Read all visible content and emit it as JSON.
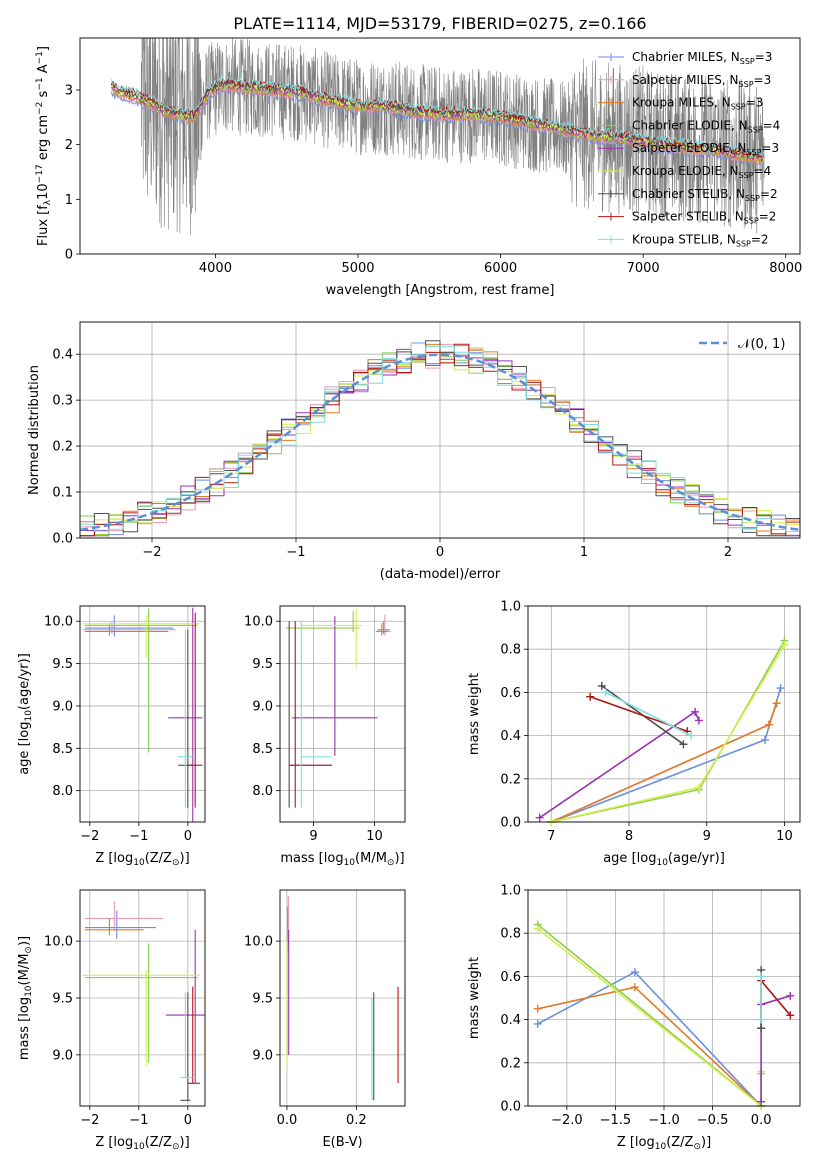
{
  "figure_title": "PLATE=1114, MJD=53179, FIBERID=0275, z=0.166",
  "colors": {
    "Chabrier MILES": "#6a8fe0",
    "Salpeter MILES": "#e89ab6",
    "Kroupa MILES": "#e07b2a",
    "Chabrier ELODIE": "#8ccf4a",
    "Salpeter ELODIE": "#9b32b4",
    "Kroupa ELODIE": "#d4ee52",
    "Chabrier STELIB": "#505050",
    "Salpeter STELIB": "#b01818",
    "Kroupa STELIB": "#7fdede",
    "data": "#808080",
    "normal": "#5b8fd6"
  },
  "chart_data": [
    {
      "id": "spectrum",
      "type": "line",
      "xlabel": "wavelength [Angstrom, rest frame]",
      "ylabel_main": "Flux [f",
      "ylabel_sub": "λ",
      "ylabel_rest": "10",
      "ylabel_sup1": "−17",
      "ylabel_mid": " erg cm",
      "ylabel_sup2": "−2",
      "ylabel_mid2": " s",
      "ylabel_sup3": "−1",
      "ylabel_end": " A",
      "ylabel_sup4": "−1",
      "ylabel_close": "]",
      "xlim": [
        3050,
        8100
      ],
      "ylim": [
        0,
        3.95
      ],
      "xticks": [
        4000,
        5000,
        6000,
        7000,
        8000
      ],
      "yticks": [
        0,
        1,
        2,
        3
      ],
      "model_continuum": {
        "x": [
          3270,
          3330,
          3420,
          3500,
          3560,
          3650,
          3750,
          3850,
          3950,
          4050,
          4200,
          4400,
          4600,
          4800,
          5000,
          5200,
          5400,
          5600,
          5800,
          6000,
          6200,
          6400,
          6550,
          6700,
          6900,
          7100,
          7300,
          7500,
          7700,
          7850
        ],
        "y": [
          3.05,
          2.95,
          2.9,
          2.8,
          2.75,
          2.6,
          2.55,
          2.5,
          2.95,
          3.1,
          3.05,
          3.0,
          2.95,
          2.8,
          2.7,
          2.7,
          2.6,
          2.55,
          2.55,
          2.5,
          2.4,
          2.3,
          2.2,
          2.15,
          2.1,
          2.0,
          1.95,
          1.9,
          1.8,
          1.75
        ]
      },
      "legend": [
        {
          "label": "Chabrier MILES",
          "n": "3"
        },
        {
          "label": "Salpeter MILES",
          "n": "3"
        },
        {
          "label": "Kroupa MILES",
          "n": "3"
        },
        {
          "label": "Chabrier ELODIE",
          "n": "4"
        },
        {
          "label": "Salpeter ELODIE",
          "n": "3"
        },
        {
          "label": "Kroupa ELODIE",
          "n": "4"
        },
        {
          "label": "Chabrier STELIB",
          "n": "2"
        },
        {
          "label": "Salpeter STELIB",
          "n": "2"
        },
        {
          "label": "Kroupa STELIB",
          "n": "2"
        }
      ],
      "legend_prefix": "N",
      "legend_sub": "SSP",
      "legend_location": "upper-right"
    },
    {
      "id": "residuals",
      "type": "histogram",
      "xlabel": "(data-model)/error",
      "ylabel": "Normed distribution",
      "xlim": [
        -2.5,
        2.5
      ],
      "ylim": [
        0,
        0.47
      ],
      "xticks": [
        -2,
        -1,
        0,
        1,
        2
      ],
      "xtick_labels": [
        "−2",
        "−1",
        "0",
        "1",
        "2"
      ],
      "yticks": [
        0.0,
        0.1,
        0.2,
        0.3,
        0.4
      ],
      "ytick_labels": [
        "0.0",
        "0.1",
        "0.2",
        "0.3",
        "0.4"
      ],
      "bin_width": 0.1,
      "bin_start": -2.5,
      "legend_label": "𝒩(0, 1)",
      "legend_location": "upper-right",
      "grid": true
    },
    {
      "id": "Z-age",
      "type": "errorbar",
      "xlabel_main": "Z [log",
      "xlabel_sub": "10",
      "xlabel_end": "(Z/Z",
      "xlabel_sun": "⊙",
      "xlabel_close": ")]",
      "ylabel": "age  [log",
      "ylabel_sub": "10",
      "ylabel_end": "(age/yr)]",
      "xlim": [
        -2.2,
        0.35
      ],
      "ylim": [
        7.63,
        10.18
      ],
      "xticks": [
        -2,
        -1,
        0
      ],
      "xtick_labels": [
        "−2",
        "−1",
        "0"
      ],
      "yticks": [
        8.0,
        8.5,
        9.0,
        9.5,
        10.0
      ],
      "ytick_labels": [
        "8.0",
        "8.5",
        "9.0",
        "9.5",
        "10.0"
      ],
      "points": [
        {
          "model": "Chabrier MILES",
          "x": -1.5,
          "xerr": [
            0.6,
            1.2
          ],
          "y": 9.92,
          "yerr": [
            0.1,
            0.15
          ]
        },
        {
          "model": "Salpeter MILES",
          "x": -1.55,
          "xerr": [
            0.6,
            1.3
          ],
          "y": 9.9,
          "yerr": [
            0.05,
            0.1
          ]
        },
        {
          "model": "Kroupa MILES",
          "x": -1.6,
          "xerr": [
            0.5,
            1.2
          ],
          "y": 9.88,
          "yerr": [
            0.05,
            0.1
          ]
        },
        {
          "model": "Chabrier ELODIE",
          "x": -0.8,
          "xerr": [
            1.3,
            1.0
          ],
          "y": 9.95,
          "yerr": [
            1.5,
            0.2
          ]
        },
        {
          "model": "Salpeter ELODIE",
          "x": 0.1,
          "xerr": [
            0.5,
            0.2
          ],
          "y": 8.86,
          "yerr": [
            2.0,
            1.3
          ]
        },
        {
          "model": "Kroupa ELODIE",
          "x": -0.85,
          "xerr": [
            1.3,
            1.1
          ],
          "y": 9.97,
          "yerr": [
            0.4,
            0.1
          ]
        },
        {
          "model": "Chabrier STELIB",
          "x": 0.0,
          "xerr": [
            0.2,
            0.1
          ],
          "y": 8.3,
          "yerr": [
            0.5,
            1.6
          ]
        },
        {
          "model": "Salpeter STELIB",
          "x": 0.15,
          "xerr": [
            0.15,
            0.15
          ],
          "y": 8.3,
          "yerr": [
            0.5,
            1.8
          ]
        },
        {
          "model": "Kroupa STELIB",
          "x": -0.05,
          "xerr": [
            0.15,
            0.15
          ],
          "y": 8.4,
          "yerr": [
            0.6,
            1.5
          ]
        }
      ]
    },
    {
      "id": "mass-age",
      "type": "errorbar",
      "xlabel_main": "mass [log",
      "xlabel_sub": "10",
      "xlabel_end": "(M/M",
      "xlabel_sun": "⊙",
      "xlabel_close": ")]",
      "xlim": [
        8.45,
        10.5
      ],
      "ylim": [
        7.63,
        10.18
      ],
      "xticks": [
        9,
        10
      ],
      "xtick_labels": [
        "9",
        "10"
      ],
      "yticks": [
        8.0,
        8.5,
        9.0,
        9.5,
        10.0
      ],
      "ytick_labels": [
        "8.0",
        "8.5",
        "9.0",
        "9.5",
        "10.0"
      ],
      "points": [
        {
          "model": "Chabrier MILES",
          "x": 10.15,
          "xerr": [
            0.1,
            0.1
          ],
          "y": 9.9,
          "yerr": [
            0.05,
            0.1
          ]
        },
        {
          "model": "Salpeter MILES",
          "x": 10.17,
          "xerr": [
            0.1,
            0.1
          ],
          "y": 9.88,
          "yerr": [
            0.05,
            0.2
          ]
        },
        {
          "model": "Kroupa MILES",
          "x": 10.12,
          "xerr": [
            0.1,
            0.1
          ],
          "y": 9.88,
          "yerr": [
            0.05,
            0.1
          ]
        },
        {
          "model": "Chabrier ELODIE",
          "x": 9.65,
          "xerr": [
            1.1,
            0.1
          ],
          "y": 9.92,
          "yerr": [
            0.05,
            0.2
          ]
        },
        {
          "model": "Salpeter ELODIE",
          "x": 9.35,
          "xerr": [
            0.7,
            0.7
          ],
          "y": 8.86,
          "yerr": [
            0.45,
            1.2
          ]
        },
        {
          "model": "Kroupa ELODIE",
          "x": 9.7,
          "xerr": [
            0.9,
            0.1
          ],
          "y": 9.95,
          "yerr": [
            0.5,
            0.2
          ]
        },
        {
          "model": "Chabrier STELIB",
          "x": 8.6,
          "xerr": [
            0.0,
            0.7
          ],
          "y": 8.3,
          "yerr": [
            0.5,
            1.7
          ]
        },
        {
          "model": "Salpeter STELIB",
          "x": 8.7,
          "xerr": [
            0.1,
            0.6
          ],
          "y": 8.3,
          "yerr": [
            0.5,
            1.7
          ]
        },
        {
          "model": "Kroupa STELIB",
          "x": 8.8,
          "xerr": [
            0.0,
            0.5
          ],
          "y": 8.4,
          "yerr": [
            0.6,
            1.6
          ]
        }
      ]
    },
    {
      "id": "age-weight",
      "type": "line",
      "xlabel_main": "age  [log",
      "xlabel_sub": "10",
      "xlabel_end": "(age/yr)]",
      "ylabel": "mass weight",
      "xlim": [
        6.7,
        10.2
      ],
      "ylim": [
        0,
        1
      ],
      "xticks": [
        7,
        8,
        9,
        10
      ],
      "xtick_labels": [
        "7",
        "8",
        "9",
        "10"
      ],
      "yticks": [
        0.0,
        0.2,
        0.4,
        0.6,
        0.8,
        1.0
      ],
      "ytick_labels": [
        "0.0",
        "0.2",
        "0.4",
        "0.6",
        "0.8",
        "1.0"
      ],
      "series": [
        {
          "model": "Chabrier MILES",
          "x": [
            7.0,
            9.75,
            9.95
          ],
          "y": [
            0.0,
            0.38,
            0.62
          ]
        },
        {
          "model": "Salpeter MILES",
          "x": [
            7.0,
            9.8,
            9.9
          ],
          "y": [
            0.0,
            0.45,
            0.55
          ]
        },
        {
          "model": "Kroupa MILES",
          "x": [
            7.0,
            9.8,
            9.9
          ],
          "y": [
            0.0,
            0.45,
            0.55
          ]
        },
        {
          "model": "Chabrier ELODIE",
          "x": [
            7.0,
            8.9,
            10.0
          ],
          "y": [
            0.0,
            0.15,
            0.84
          ]
        },
        {
          "model": "Salpeter ELODIE",
          "x": [
            6.85,
            8.85,
            8.9
          ],
          "y": [
            0.02,
            0.51,
            0.47
          ]
        },
        {
          "model": "Kroupa ELODIE",
          "x": [
            7.0,
            8.9,
            10.0
          ],
          "y": [
            0.0,
            0.16,
            0.82
          ]
        },
        {
          "model": "Chabrier STELIB",
          "x": [
            7.65,
            8.7
          ],
          "y": [
            0.63,
            0.36
          ]
        },
        {
          "model": "Salpeter STELIB",
          "x": [
            7.5,
            8.75
          ],
          "y": [
            0.58,
            0.42
          ]
        },
        {
          "model": "Kroupa STELIB",
          "x": [
            7.7,
            8.8
          ],
          "y": [
            0.6,
            0.4
          ]
        }
      ]
    },
    {
      "id": "Z-mass",
      "type": "errorbar",
      "xlabel_main": "Z [log",
      "xlabel_sub": "10",
      "xlabel_end": "(Z/Z",
      "xlabel_sun": "⊙",
      "xlabel_close": ")]",
      "ylabel": "mass [log",
      "ylabel_sub": "10",
      "ylabel_end": "(M/M",
      "ylabel_sun": "⊙",
      "ylabel_close": ")]",
      "xlim": [
        -2.2,
        0.35
      ],
      "ylim": [
        8.55,
        10.45
      ],
      "xticks": [
        -2,
        -1,
        0
      ],
      "xtick_labels": [
        "−2",
        "−1",
        "0"
      ],
      "yticks": [
        9.0,
        9.5,
        10.0
      ],
      "ytick_labels": [
        "9.0",
        "9.5",
        "10.0"
      ],
      "points": [
        {
          "model": "Chabrier MILES",
          "x": -1.45,
          "xerr": [
            0.65,
            0.8
          ],
          "y": 10.12,
          "yerr": [
            0.1,
            0.15
          ]
        },
        {
          "model": "Salpeter MILES",
          "x": -1.5,
          "xerr": [
            0.6,
            1.0
          ],
          "y": 10.2,
          "yerr": [
            0.1,
            0.15
          ]
        },
        {
          "model": "Kroupa MILES",
          "x": -1.6,
          "xerr": [
            0.5,
            0.7
          ],
          "y": 10.1,
          "yerr": [
            0.05,
            0.1
          ]
        },
        {
          "model": "Chabrier ELODIE",
          "x": -0.8,
          "xerr": [
            1.3,
            1.0
          ],
          "y": 9.68,
          "yerr": [
            0.75,
            0.3
          ]
        },
        {
          "model": "Salpeter ELODIE",
          "x": 0.15,
          "xerr": [
            0.6,
            0.2
          ],
          "y": 9.35,
          "yerr": [
            0.6,
            0.75
          ]
        },
        {
          "model": "Kroupa ELODIE",
          "x": -0.85,
          "xerr": [
            1.3,
            1.1
          ],
          "y": 9.7,
          "yerr": [
            0.8,
            0.05
          ]
        },
        {
          "model": "Chabrier STELIB",
          "x": 0.0,
          "xerr": [
            0.15,
            0.05
          ],
          "y": 8.6,
          "yerr": [
            0.0,
            0.95
          ]
        },
        {
          "model": "Salpeter STELIB",
          "x": 0.1,
          "xerr": [
            0.1,
            0.15
          ],
          "y": 8.75,
          "yerr": [
            0.0,
            0.85
          ]
        },
        {
          "model": "Kroupa STELIB",
          "x": -0.05,
          "xerr": [
            0.1,
            0.15
          ],
          "y": 8.8,
          "yerr": [
            0.0,
            0.75
          ]
        }
      ]
    },
    {
      "id": "EBV-mass",
      "type": "errorbar",
      "xlabel": "E(B-V)",
      "xlim": [
        -0.02,
        0.34
      ],
      "ylim": [
        8.55,
        10.45
      ],
      "xticks": [
        0.0,
        0.2
      ],
      "xtick_labels": [
        "0.0",
        "0.2"
      ],
      "yticks": [
        9.0,
        9.5,
        10.0
      ],
      "ytick_labels": [
        "9.0",
        "9.5",
        "10.0"
      ],
      "points": [
        {
          "model": "Chabrier MILES",
          "x": 0.003,
          "y": 10.05,
          "yerr": [
            0.1,
            0.15
          ]
        },
        {
          "model": "Salpeter MILES",
          "x": 0.004,
          "y": 10.1,
          "yerr": [
            0.1,
            0.3
          ]
        },
        {
          "model": "Kroupa MILES",
          "x": 0.002,
          "y": 10.0,
          "yerr": [
            0.1,
            0.3
          ]
        },
        {
          "model": "Chabrier ELODIE",
          "x": 0.001,
          "y": 9.6,
          "yerr": [
            0.6,
            0.5
          ]
        },
        {
          "model": "Salpeter ELODIE",
          "x": 0.005,
          "y": 9.5,
          "yerr": [
            0.5,
            0.6
          ]
        },
        {
          "model": "Kroupa ELODIE",
          "x": 0.0,
          "y": 9.5,
          "yerr": [
            0.6,
            0.5
          ]
        },
        {
          "model": "Chabrier STELIB",
          "x": 0.25,
          "y": 9.1,
          "yerr": [
            0.5,
            0.45
          ]
        },
        {
          "model": "Salpeter STELIB",
          "x": 0.32,
          "y": 9.2,
          "yerr": [
            0.45,
            0.4
          ]
        },
        {
          "model": "Kroupa STELIB",
          "x": 0.245,
          "y": 9.0,
          "yerr": [
            0.4,
            0.5
          ]
        }
      ]
    },
    {
      "id": "Z-weight",
      "type": "line",
      "xlabel_main": "Z [log",
      "xlabel_sub": "10",
      "xlabel_end": "(Z/Z",
      "xlabel_sun": "⊙",
      "xlabel_close": ")]",
      "ylabel": "mass weight",
      "xlim": [
        -2.4,
        0.4
      ],
      "ylim": [
        0,
        1
      ],
      "xticks": [
        -2.0,
        -1.5,
        -1.0,
        -0.5,
        0.0
      ],
      "xtick_labels": [
        "−2.0",
        "−1.5",
        "−1.0",
        "−0.5",
        "0.0"
      ],
      "yticks": [
        0.0,
        0.2,
        0.4,
        0.6,
        0.8,
        1.0
      ],
      "ytick_labels": [
        "0.0",
        "0.2",
        "0.4",
        "0.6",
        "0.8",
        "1.0"
      ],
      "series": [
        {
          "model": "Chabrier MILES",
          "x": [
            -2.3,
            -1.3,
            0.0
          ],
          "y": [
            0.38,
            0.62,
            0.0
          ]
        },
        {
          "model": "Kroupa MILES",
          "x": [
            -2.3,
            -1.3,
            0.0
          ],
          "y": [
            0.45,
            0.55,
            0.0
          ]
        },
        {
          "model": "Chabrier ELODIE",
          "x": [
            -2.3,
            0.0,
            0.0
          ],
          "y": [
            0.84,
            0.0,
            0.15
          ]
        },
        {
          "model": "Kroupa ELODIE",
          "x": [
            -2.3,
            0.0,
            0.0
          ],
          "y": [
            0.82,
            0.0,
            0.16
          ]
        },
        {
          "model": "Salpeter ELODIE",
          "x": [
            0.0,
            0.0,
            0.3
          ],
          "y": [
            0.02,
            0.47,
            0.51
          ]
        },
        {
          "model": "Chabrier STELIB",
          "x": [
            0.0,
            0.0
          ],
          "y": [
            0.63,
            0.36
          ]
        },
        {
          "model": "Salpeter STELIB",
          "x": [
            0.0,
            0.3
          ],
          "y": [
            0.58,
            0.42
          ]
        },
        {
          "model": "Kroupa STELIB",
          "x": [
            0.0,
            0.0
          ],
          "y": [
            0.6,
            0.4
          ]
        }
      ]
    }
  ]
}
